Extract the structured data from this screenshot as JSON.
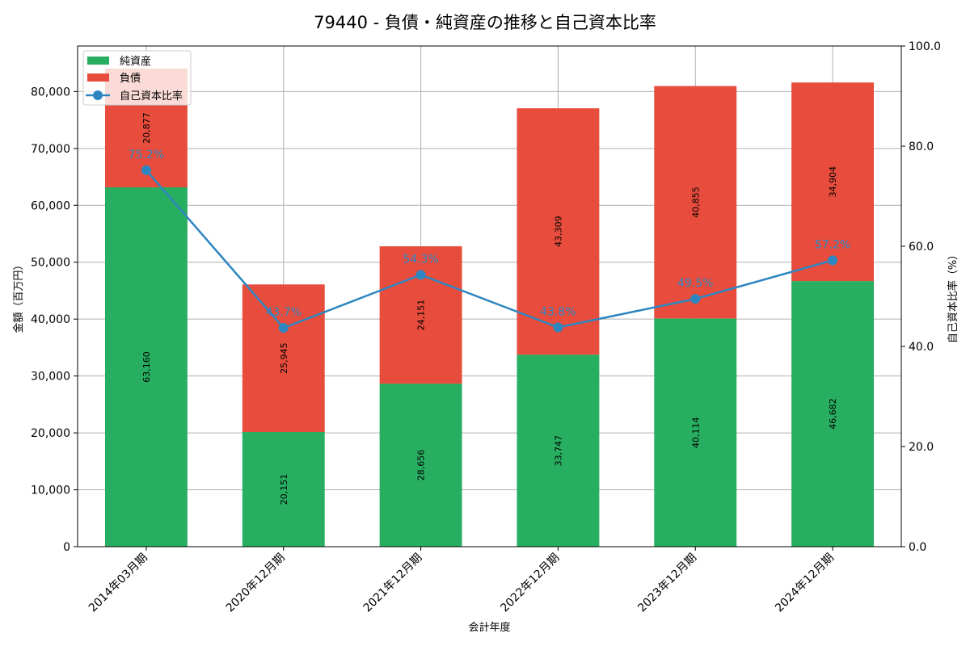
{
  "title": "79440 - 負債・純資産の推移と自己資本比率",
  "colors": {
    "net_assets": "#27ae60",
    "liabilities": "#e74c3c",
    "ratio": "#2e86c1",
    "grid": "#b0b0b0"
  },
  "chart_data": {
    "type": "bar",
    "stacked": true,
    "title": "79440 - 負債・純資産の推移と自己資本比率",
    "xlabel": "会計年度",
    "ylabel": "金額（百万円）",
    "y2label": "自己資本比率（%）",
    "categories": [
      "2014年03期",
      "2020年12月期",
      "2021年12月期",
      "2022年12月期",
      "2023年12月期",
      "2024年12月期"
    ],
    "category_labels": [
      "2014年03月期",
      "2020年12月期",
      "2021年12月期",
      "2022年12月期",
      "2023年12月期",
      "2024年12月期"
    ],
    "series": [
      {
        "name": "純資産",
        "type": "bar",
        "axis": "left",
        "values": [
          63160,
          20151,
          28656,
          33747,
          40114,
          46682
        ],
        "labels": [
          "63,160",
          "20,151",
          "28,656",
          "33,747",
          "40,114",
          "46,682"
        ]
      },
      {
        "name": "負債",
        "type": "bar",
        "axis": "left",
        "values": [
          20877,
          25945,
          24151,
          43309,
          40855,
          34904
        ],
        "labels": [
          "20,877",
          "25,945",
          "24,151",
          "43,309",
          "40,855",
          "34,904"
        ]
      },
      {
        "name": "自己資本比率",
        "type": "line",
        "axis": "right",
        "values": [
          75.2,
          43.7,
          54.3,
          43.8,
          49.5,
          57.2
        ],
        "labels": [
          "75.2%",
          "43.7%",
          "54.3%",
          "43.8%",
          "49.5%",
          "57.2%"
        ]
      }
    ],
    "ylim": [
      0,
      88000
    ],
    "y_ticks": [
      0,
      10000,
      20000,
      30000,
      40000,
      50000,
      60000,
      70000,
      80000
    ],
    "y_tick_labels": [
      "0",
      "10,000",
      "20,000",
      "30,000",
      "40,000",
      "50,000",
      "60,000",
      "70,000",
      "80,000"
    ],
    "y2lim": [
      0,
      100
    ],
    "y2_ticks": [
      0,
      20,
      40,
      60,
      80,
      100
    ],
    "y2_tick_labels": [
      "0.0",
      "20.0",
      "40.0",
      "60.0",
      "80.0",
      "100.0"
    ],
    "grid": true,
    "legend": {
      "position": "upper left",
      "entries": [
        "純資産",
        "負債",
        "自己資本比率"
      ]
    }
  }
}
